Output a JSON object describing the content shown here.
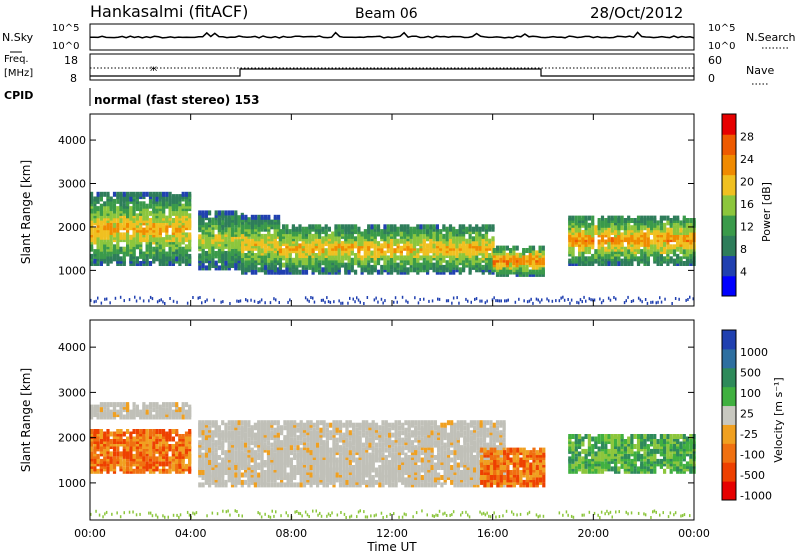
{
  "header": {
    "station": "Hankasalmi (fitACF)",
    "beam": "Beam 06",
    "date": "28/Oct/2012"
  },
  "top_panel": {
    "left_labels": {
      "nsky": "N.Sky",
      "freq": "Freq.",
      "freq_unit": "[MHz]",
      "cpid": "CPID"
    },
    "right_labels": {
      "nsearch": "N.Search",
      "nave": "Nave"
    },
    "noise_ticks_left": [
      "10^5",
      "10^0"
    ],
    "noise_ticks_right": [
      "10^5",
      "10^0"
    ],
    "freq_ticks": [
      "18",
      "8"
    ],
    "nave_ticks": [
      "60",
      "0"
    ],
    "cpid_text": "normal (fast stereo) 153"
  },
  "colors": {
    "power_scale": [
      "#0000ff",
      "#2040b0",
      "#2e7d5a",
      "#3a9a4a",
      "#8cc63c",
      "#f0c020",
      "#f08a00",
      "#ee5a00",
      "#e60000"
    ],
    "velocity_scale": [
      "#2040b0",
      "#2e6fa0",
      "#2e8a5a",
      "#40b040",
      "#c8c8c0",
      "#f0a020",
      "#f07010",
      "#ee4000",
      "#e60000"
    ],
    "ground_scatter": "#c0c0b8"
  },
  "chart_data": [
    {
      "type": "heatmap",
      "name": "power",
      "xlabel": "",
      "ylabel": "Slant Range [km]",
      "xlim": [
        "00:00",
        "24:00"
      ],
      "ylim": [
        180,
        4600
      ],
      "yticks": [
        1000,
        2000,
        3000,
        4000
      ],
      "colorbar": {
        "label": "Power [dB]",
        "range": [
          0,
          32
        ],
        "ticks": [
          4,
          8,
          12,
          16,
          20,
          24,
          28
        ]
      },
      "bands": [
        {
          "t0": 0.0,
          "t1": 4.0,
          "r0": 1100,
          "r1": 2700,
          "level": 22
        },
        {
          "t0": 4.3,
          "t1": 6.0,
          "r0": 1000,
          "r1": 2300,
          "level": 18
        },
        {
          "t0": 6.0,
          "t1": 7.5,
          "r0": 900,
          "r1": 2200,
          "level": 20
        },
        {
          "t0": 7.5,
          "t1": 16.0,
          "r0": 900,
          "r1": 2000,
          "level": 22
        },
        {
          "t0": 16.0,
          "t1": 18.0,
          "r0": 850,
          "r1": 1500,
          "level": 26
        },
        {
          "t0": 19.0,
          "t1": 24.0,
          "r0": 1100,
          "r1": 2200,
          "level": 24
        }
      ]
    },
    {
      "type": "heatmap",
      "name": "velocity",
      "xlabel": "Time UT",
      "ylabel": "Slant Range [km]",
      "xlim": [
        "00:00",
        "24:00"
      ],
      "ylim": [
        180,
        4600
      ],
      "yticks": [
        1000,
        2000,
        3000,
        4000
      ],
      "xticks": [
        "00:00",
        "04:00",
        "08:00",
        "12:00",
        "16:00",
        "20:00",
        "00:00"
      ],
      "colorbar": {
        "label": "Velocity [m s⁻¹]",
        "ticks": [
          "1000",
          "500",
          "100",
          "25",
          "-25",
          "-100",
          "-500",
          "-1000"
        ]
      },
      "bands": [
        {
          "t0": 0.0,
          "t1": 4.0,
          "r0": 1200,
          "r1": 2100,
          "velocity": -300
        },
        {
          "t0": 0.0,
          "t1": 4.0,
          "r0": 2400,
          "r1": 2700,
          "velocity": 0
        },
        {
          "t0": 4.3,
          "t1": 16.5,
          "r0": 900,
          "r1": 2300,
          "velocity": 0
        },
        {
          "t0": 15.5,
          "t1": 18.0,
          "r0": 900,
          "r1": 1700,
          "velocity": -400
        },
        {
          "t0": 19.0,
          "t1": 24.0,
          "r0": 1200,
          "r1": 2000,
          "velocity": 80
        }
      ]
    }
  ]
}
